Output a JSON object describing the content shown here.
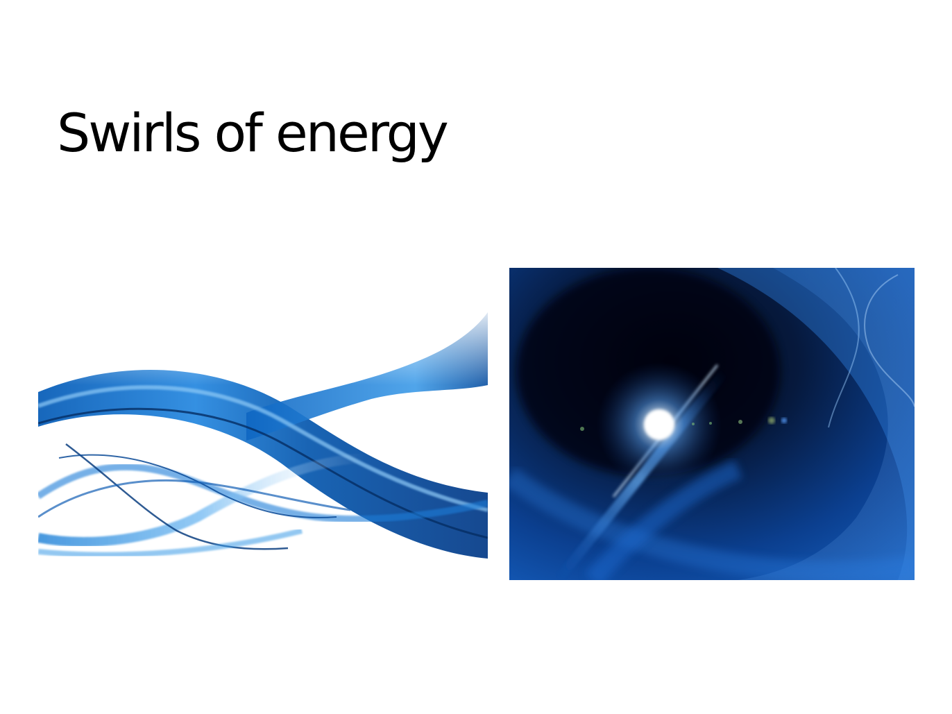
{
  "slide": {
    "title": "Swirls of energy",
    "images": [
      {
        "icon": "blue-swirl-ribbons-image"
      },
      {
        "icon": "blue-light-burst-image"
      }
    ]
  },
  "colors": {
    "background": "#ffffff",
    "title_text": "#000000",
    "accent_blue": "#1a73c8",
    "deep_blue": "#0a2a66",
    "dark_navy": "#020814"
  }
}
